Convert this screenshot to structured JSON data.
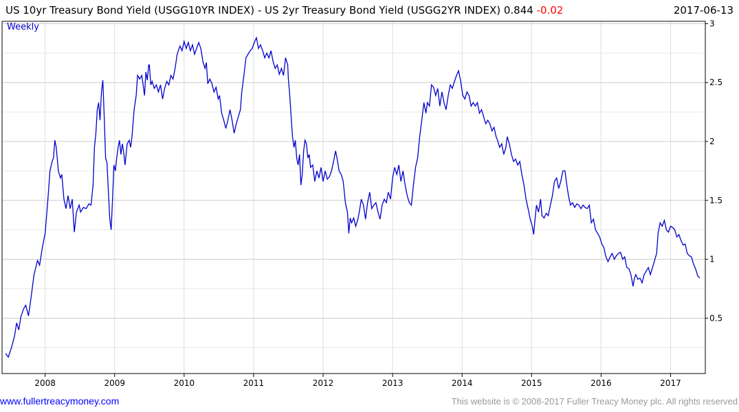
{
  "header": {
    "title": "US 10yr Treasury Bond Yield (USGG10YR INDEX) - US 2yr Treasury Bond Yield (USGG2YR INDEX)",
    "last": "0.844",
    "change": "-0.02",
    "date": "2017-06-13"
  },
  "footer": {
    "website": "www.fullertreacymoney.com",
    "copyright": "This website is © 2008-2017 Fuller Treacy Money plc. All rights reserved"
  },
  "colors": {
    "line": "#0000cc",
    "change": "#ff0000",
    "grid": "#dddddd"
  },
  "chart_data": {
    "type": "line",
    "title": "US 10yr Treasury Bond Yield (USGG10YR INDEX) - US 2yr Treasury Bond Yield (USGG2YR INDEX)",
    "frequency": "Weekly",
    "xlim": [
      2007.38,
      2017.5
    ],
    "ylim": [
      0.03,
      3.02
    ],
    "x_ticks": [
      2008,
      2009,
      2010,
      2011,
      2012,
      2013,
      2014,
      2015,
      2016,
      2017
    ],
    "x_tick_labels": [
      "2008",
      "2009",
      "2010",
      "2011",
      "2012",
      "2013",
      "2014",
      "2015",
      "2016",
      "2017"
    ],
    "y_ticks": [
      0.5,
      1,
      1.5,
      2,
      2.5,
      3
    ],
    "y_tick_labels": [
      "0.5",
      "1",
      "1.5",
      "2",
      "2.5",
      "3"
    ],
    "y_axis_side": "right",
    "grid": true,
    "series": [
      {
        "name": "USGG10YR - USGG2YR",
        "x": [
          2007.43,
          2007.47,
          2007.52,
          2007.56,
          2007.59,
          2007.62,
          2007.65,
          2007.69,
          2007.72,
          2007.76,
          2007.79,
          2007.84,
          2007.89,
          2007.92,
          2007.96,
          2008.0,
          2008.04,
          2008.07,
          2008.1,
          2008.12,
          2008.14,
          2008.16,
          2008.19,
          2008.22,
          2008.24,
          2008.27,
          2008.3,
          2008.33,
          2008.36,
          2008.39,
          2008.42,
          2008.45,
          2008.49,
          2008.51,
          2008.55,
          2008.59,
          2008.63,
          2008.66,
          2008.69,
          2008.71,
          2008.73,
          2008.75,
          2008.77,
          2008.79,
          2008.81,
          2008.83,
          2008.85,
          2008.87,
          2008.89,
          2008.91,
          2008.93,
          2008.95,
          2008.97,
          2008.99,
          2009.01,
          2009.03,
          2009.05,
          2009.07,
          2009.09,
          2009.11,
          2009.13,
          2009.15,
          2009.18,
          2009.21,
          2009.23,
          2009.25,
          2009.28,
          2009.31,
          2009.33,
          2009.36,
          2009.39,
          2009.41,
          2009.43,
          2009.45,
          2009.47,
          2009.49,
          2009.5,
          2009.52,
          2009.54,
          2009.57,
          2009.6,
          2009.63,
          2009.66,
          2009.69,
          2009.72,
          2009.75,
          2009.78,
          2009.81,
          2009.84,
          2009.87,
          2009.9,
          2009.94,
          2009.97,
          2010.0,
          2010.03,
          2010.06,
          2010.09,
          2010.12,
          2010.15,
          2010.18,
          2010.21,
          2010.24,
          2010.27,
          2010.3,
          2010.32,
          2010.34,
          2010.37,
          2010.4,
          2010.43,
          2010.46,
          2010.49,
          2010.51,
          2010.54,
          2010.57,
          2010.6,
          2010.63,
          2010.66,
          2010.69,
          2010.72,
          2010.75,
          2010.78,
          2010.81,
          2010.83,
          2010.86,
          2010.89,
          2010.92,
          2010.95,
          2010.98,
          2011.01,
          2011.04,
          2011.07,
          2011.1,
          2011.13,
          2011.16,
          2011.19,
          2011.22,
          2011.25,
          2011.28,
          2011.31,
          2011.34,
          2011.37,
          2011.4,
          2011.43,
          2011.46,
          2011.49,
          2011.5,
          2011.52,
          2011.54,
          2011.56,
          2011.58,
          2011.6,
          2011.62,
          2011.64,
          2011.66,
          2011.68,
          2011.7,
          2011.72,
          2011.74,
          2011.76,
          2011.78,
          2011.8,
          2011.82,
          2011.85,
          2011.88,
          2011.91,
          2011.94,
          2011.97,
          2012.0,
          2012.03,
          2012.06,
          2012.09,
          2012.12,
          2012.15,
          2012.18,
          2012.2,
          2012.23,
          2012.26,
          2012.29,
          2012.32,
          2012.35,
          2012.37,
          2012.39,
          2012.41,
          2012.44,
          2012.47,
          2012.5,
          2012.52,
          2012.55,
          2012.58,
          2012.61,
          2012.64,
          2012.67,
          2012.7,
          2012.73,
          2012.76,
          2012.79,
          2012.82,
          2012.85,
          2012.88,
          2012.91,
          2012.94,
          2012.97,
          2013.0,
          2013.03,
          2013.06,
          2013.09,
          2013.12,
          2013.15,
          2013.18,
          2013.21,
          2013.24,
          2013.27,
          2013.3,
          2013.33,
          2013.36,
          2013.39,
          2013.42,
          2013.45,
          2013.48,
          2013.5,
          2013.53,
          2013.56,
          2013.59,
          2013.62,
          2013.65,
          2013.68,
          2013.71,
          2013.74,
          2013.77,
          2013.8,
          2013.83,
          2013.86,
          2013.89,
          2013.92,
          2013.95,
          2013.98,
          2014.01,
          2014.04,
          2014.07,
          2014.1,
          2014.13,
          2014.16,
          2014.19,
          2014.22,
          2014.25,
          2014.28,
          2014.31,
          2014.34,
          2014.37,
          2014.4,
          2014.43,
          2014.46,
          2014.49,
          2014.51,
          2014.54,
          2014.57,
          2014.6,
          2014.63,
          2014.65,
          2014.68,
          2014.71,
          2014.74,
          2014.77,
          2014.8,
          2014.83,
          2014.86,
          2014.89,
          2014.92,
          2014.95,
          2014.98,
          2015.01,
          2015.03,
          2015.05,
          2015.07,
          2015.1,
          2015.13,
          2015.15,
          2015.18,
          2015.21,
          2015.24,
          2015.27,
          2015.3,
          2015.33,
          2015.36,
          2015.39,
          2015.42,
          2015.45,
          2015.48,
          2015.5,
          2015.53,
          2015.56,
          2015.59,
          2015.62,
          2015.65,
          2015.68,
          2015.71,
          2015.74,
          2015.77,
          2015.8,
          2015.83,
          2015.86,
          2015.89,
          2015.92,
          2015.95,
          2015.98,
          2016.01,
          2016.04,
          2016.07,
          2016.1,
          2016.13,
          2016.16,
          2016.19,
          2016.22,
          2016.25,
          2016.28,
          2016.31,
          2016.34,
          2016.37,
          2016.4,
          2016.43,
          2016.46,
          2016.48,
          2016.5,
          2016.53,
          2016.56,
          2016.59,
          2016.62,
          2016.65,
          2016.68,
          2016.71,
          2016.74,
          2016.77,
          2016.8,
          2016.82,
          2016.85,
          2016.88,
          2016.91,
          2016.94,
          2016.97,
          2017.0,
          2017.03,
          2017.06,
          2017.09,
          2017.12,
          2017.15,
          2017.18,
          2017.21,
          2017.24,
          2017.27,
          2017.3,
          2017.33,
          2017.36,
          2017.39,
          2017.42
        ],
        "y": [
          0.2,
          0.17,
          0.26,
          0.35,
          0.46,
          0.4,
          0.51,
          0.58,
          0.61,
          0.52,
          0.64,
          0.87,
          0.99,
          0.95,
          1.1,
          1.22,
          1.51,
          1.75,
          1.83,
          1.86,
          2.01,
          1.95,
          1.75,
          1.69,
          1.72,
          1.51,
          1.43,
          1.54,
          1.43,
          1.51,
          1.23,
          1.4,
          1.46,
          1.4,
          1.44,
          1.43,
          1.47,
          1.46,
          1.63,
          1.95,
          2.07,
          2.27,
          2.33,
          2.18,
          2.42,
          2.52,
          2.21,
          1.86,
          1.82,
          1.57,
          1.34,
          1.25,
          1.51,
          1.8,
          1.75,
          1.86,
          1.95,
          2.01,
          1.89,
          1.98,
          1.91,
          1.8,
          1.98,
          2.01,
          1.95,
          2.04,
          2.27,
          2.39,
          2.56,
          2.53,
          2.56,
          2.48,
          2.39,
          2.59,
          2.52,
          2.65,
          2.65,
          2.48,
          2.51,
          2.45,
          2.48,
          2.42,
          2.48,
          2.36,
          2.45,
          2.51,
          2.48,
          2.56,
          2.53,
          2.62,
          2.74,
          2.81,
          2.77,
          2.85,
          2.79,
          2.84,
          2.77,
          2.82,
          2.74,
          2.79,
          2.84,
          2.79,
          2.68,
          2.62,
          2.67,
          2.49,
          2.53,
          2.49,
          2.42,
          2.46,
          2.36,
          2.39,
          2.24,
          2.18,
          2.11,
          2.18,
          2.27,
          2.18,
          2.07,
          2.15,
          2.21,
          2.27,
          2.42,
          2.56,
          2.71,
          2.74,
          2.77,
          2.79,
          2.84,
          2.88,
          2.79,
          2.82,
          2.77,
          2.71,
          2.75,
          2.71,
          2.77,
          2.68,
          2.62,
          2.65,
          2.57,
          2.62,
          2.56,
          2.71,
          2.65,
          2.53,
          2.39,
          2.21,
          2.04,
          1.95,
          2.01,
          1.86,
          1.8,
          1.89,
          1.63,
          1.72,
          1.92,
          2.01,
          1.98,
          1.86,
          1.89,
          1.78,
          1.8,
          1.66,
          1.75,
          1.69,
          1.78,
          1.66,
          1.75,
          1.68,
          1.7,
          1.75,
          1.83,
          1.92,
          1.86,
          1.75,
          1.72,
          1.66,
          1.48,
          1.4,
          1.22,
          1.35,
          1.31,
          1.35,
          1.28,
          1.34,
          1.4,
          1.51,
          1.46,
          1.34,
          1.48,
          1.57,
          1.43,
          1.46,
          1.48,
          1.4,
          1.34,
          1.46,
          1.51,
          1.48,
          1.57,
          1.51,
          1.69,
          1.78,
          1.72,
          1.8,
          1.66,
          1.75,
          1.63,
          1.54,
          1.48,
          1.46,
          1.63,
          1.78,
          1.86,
          2.04,
          2.18,
          2.33,
          2.24,
          2.33,
          2.3,
          2.48,
          2.46,
          2.39,
          2.45,
          2.3,
          2.42,
          2.33,
          2.27,
          2.39,
          2.48,
          2.45,
          2.51,
          2.56,
          2.6,
          2.51,
          2.39,
          2.36,
          2.42,
          2.39,
          2.3,
          2.33,
          2.3,
          2.33,
          2.24,
          2.27,
          2.21,
          2.15,
          2.18,
          2.15,
          2.09,
          2.12,
          2.04,
          2.01,
          1.95,
          1.98,
          1.89,
          1.95,
          2.04,
          1.98,
          1.89,
          1.83,
          1.85,
          1.8,
          1.83,
          1.72,
          1.63,
          1.51,
          1.43,
          1.34,
          1.28,
          1.21,
          1.34,
          1.46,
          1.4,
          1.51,
          1.37,
          1.35,
          1.39,
          1.37,
          1.46,
          1.54,
          1.66,
          1.69,
          1.6,
          1.66,
          1.75,
          1.75,
          1.66,
          1.54,
          1.46,
          1.48,
          1.44,
          1.47,
          1.46,
          1.43,
          1.46,
          1.44,
          1.43,
          1.46,
          1.31,
          1.34,
          1.25,
          1.22,
          1.19,
          1.13,
          1.1,
          1.02,
          0.98,
          1.02,
          1.05,
          1.0,
          1.03,
          1.05,
          1.06,
          1.0,
          1.02,
          0.93,
          0.92,
          0.87,
          0.77,
          0.84,
          0.87,
          0.83,
          0.84,
          0.8,
          0.87,
          0.9,
          0.93,
          0.87,
          0.93,
          0.99,
          1.05,
          1.22,
          1.31,
          1.28,
          1.33,
          1.25,
          1.23,
          1.28,
          1.27,
          1.25,
          1.19,
          1.21,
          1.16,
          1.12,
          1.13,
          1.05,
          1.03,
          1.02,
          0.96,
          0.92,
          0.86,
          0.84
        ]
      }
    ]
  }
}
